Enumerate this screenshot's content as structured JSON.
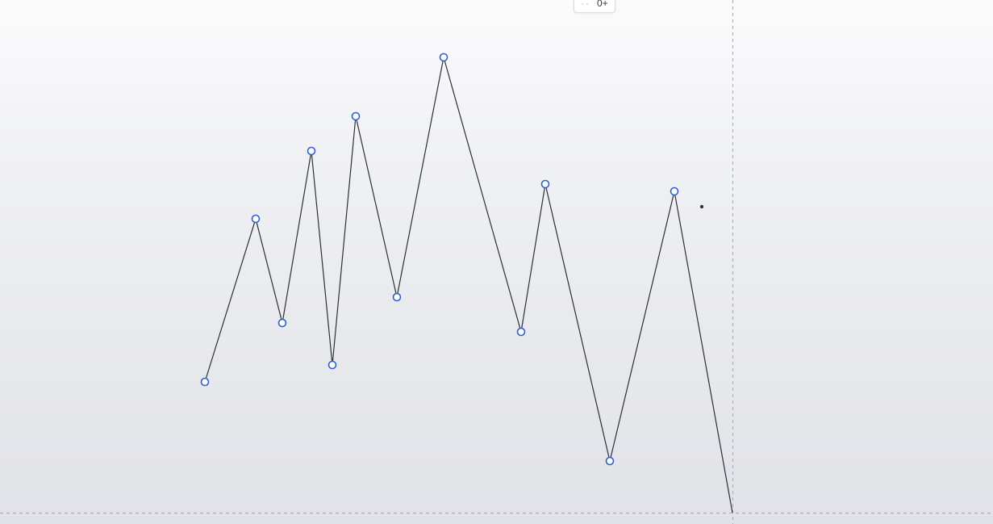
{
  "tooltip": {
    "icon": "drag-dots-icon",
    "value": "0+"
  },
  "colors": {
    "line": "#2b2f36",
    "point_stroke": "#2f5fd0",
    "point_fill": "#ffffff",
    "guide": "#a8abb4",
    "cursor_dot": "#333333"
  }
}
